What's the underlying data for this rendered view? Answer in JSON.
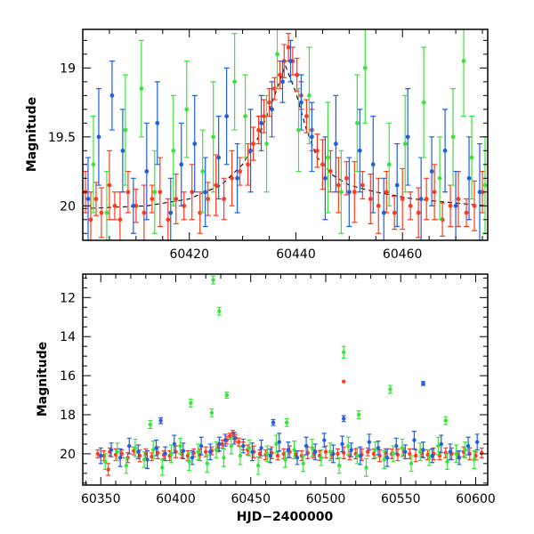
{
  "chart_data": [
    {
      "type": "scatter",
      "panel": "top",
      "title": "",
      "xlabel": "",
      "ylabel": "Magnitude",
      "xlim": [
        60400,
        60476
      ],
      "ylim": [
        20.25,
        18.72
      ],
      "y_inverted": true,
      "xticks": [
        60420,
        60440,
        60460
      ],
      "yticks": [
        19,
        19.5,
        20
      ],
      "ytick_labels": [
        "19",
        "19.5",
        "20"
      ],
      "error_bars": true,
      "grid": false,
      "legend": "none",
      "model_curve": {
        "style": "dashed",
        "color": "#000000",
        "x": [
          60400,
          60412,
          60420,
          60426,
          60430,
          60433,
          60436,
          60438,
          60440,
          60442,
          60444,
          60447,
          60450,
          60455,
          60462,
          60470,
          60476
        ],
        "y": [
          20.02,
          20.0,
          19.95,
          19.85,
          19.7,
          19.5,
          19.2,
          18.98,
          19.18,
          19.45,
          19.65,
          19.78,
          19.85,
          19.9,
          19.95,
          19.98,
          20.0
        ]
      },
      "series": [
        {
          "color": "#ff3b1f",
          "x": [
            60400.5,
            60401.5,
            60402.5,
            60403.5,
            60405,
            60406,
            60407,
            60408.5,
            60410,
            60411.5,
            60413,
            60414.5,
            60416,
            60417.5,
            60419,
            60420.5,
            60422,
            60423.5,
            60425,
            60426.5,
            60428,
            60429.5,
            60431,
            60432,
            60433,
            60434,
            60435,
            60436,
            60437,
            60437.8,
            60438.6,
            60439.4,
            60440.2,
            60441,
            60442,
            60443,
            60444,
            60445,
            60446.5,
            60448,
            60449.5,
            60451,
            60452.5,
            60454,
            60455.5,
            60457,
            60458.5,
            60460,
            60461.5,
            60463,
            60464.5,
            60466,
            60467.5,
            60469,
            60470.5,
            60472,
            60473.5,
            60475
          ],
          "y": [
            19.9,
            20.1,
            19.95,
            20.05,
            19.85,
            20.0,
            20.1,
            19.9,
            20.0,
            20.05,
            19.95,
            19.9,
            20.1,
            19.95,
            20.0,
            19.9,
            20.05,
            19.95,
            19.85,
            19.95,
            19.8,
            19.75,
            19.7,
            19.55,
            19.45,
            19.35,
            19.25,
            19.15,
            19.05,
            18.95,
            18.85,
            18.95,
            19.05,
            19.2,
            19.35,
            19.45,
            19.6,
            19.7,
            19.75,
            19.85,
            19.8,
            19.9,
            19.85,
            19.95,
            20.0,
            19.9,
            20.05,
            19.95,
            20.0,
            20.05,
            19.95,
            19.9,
            20.1,
            20.0,
            19.95,
            20.05,
            20.0,
            19.9
          ],
          "yerr": [
            0.15,
            0.2,
            0.12,
            0.18,
            0.25,
            0.1,
            0.2,
            0.15,
            0.12,
            0.2,
            0.1,
            0.25,
            0.15,
            0.18,
            0.1,
            0.2,
            0.15,
            0.12,
            0.22,
            0.15,
            0.2,
            0.1,
            0.15,
            0.12,
            0.1,
            0.12,
            0.1,
            0.08,
            0.1,
            0.12,
            0.1,
            0.1,
            0.12,
            0.1,
            0.12,
            0.15,
            0.12,
            0.18,
            0.15,
            0.2,
            0.12,
            0.22,
            0.1,
            0.18,
            0.2,
            0.15,
            0.12,
            0.22,
            0.1,
            0.18,
            0.15,
            0.2,
            0.12,
            0.15,
            0.2,
            0.1,
            0.18,
            0.15
          ]
        },
        {
          "color": "#1f5fe0",
          "x": [
            60401,
            60403,
            60405.5,
            60407.5,
            60409.5,
            60412,
            60414,
            60416.5,
            60418.5,
            60421,
            60423,
            60425.5,
            60427,
            60429,
            60431.5,
            60433.5,
            60435.5,
            60437.5,
            60439,
            60441,
            60443,
            60445.5,
            60447.5,
            60450,
            60452,
            60454.5,
            60456.5,
            60459,
            60461,
            60463.5,
            60465.5,
            60468,
            60470,
            60472.5,
            60474.5
          ],
          "y": [
            19.95,
            19.5,
            19.2,
            19.6,
            20.0,
            19.75,
            19.4,
            20.05,
            19.7,
            19.55,
            19.9,
            19.65,
            19.35,
            19.8,
            19.6,
            19.4,
            19.3,
            19.1,
            18.95,
            19.25,
            19.5,
            19.8,
            19.55,
            19.9,
            19.6,
            19.7,
            20.05,
            19.85,
            19.5,
            19.95,
            19.75,
            19.6,
            20.0,
            19.8,
            19.9
          ],
          "yerr": [
            0.3,
            0.35,
            0.25,
            0.3,
            0.2,
            0.35,
            0.3,
            0.25,
            0.3,
            0.35,
            0.25,
            0.3,
            0.35,
            0.25,
            0.3,
            0.2,
            0.2,
            0.15,
            0.15,
            0.2,
            0.25,
            0.3,
            0.35,
            0.25,
            0.3,
            0.35,
            0.25,
            0.3,
            0.35,
            0.3,
            0.25,
            0.3,
            0.25,
            0.3,
            0.35
          ]
        },
        {
          "color": "#3ce33c",
          "x": [
            60402,
            60404.5,
            60408,
            60411,
            60413.5,
            60417,
            60419.5,
            60422.5,
            60424.5,
            60428.5,
            60430.5,
            60434.5,
            60436.5,
            60440.5,
            60442.5,
            60446,
            60448.5,
            60451.5,
            60453,
            60457.5,
            60460.5,
            60464,
            60467,
            60469.5,
            60471.5,
            60473,
            60475.5
          ],
          "y": [
            19.7,
            20.05,
            19.45,
            19.15,
            19.9,
            19.6,
            19.3,
            19.75,
            19.5,
            19.1,
            19.35,
            19.55,
            18.9,
            19.45,
            19.2,
            19.65,
            19.9,
            19.4,
            19.0,
            19.7,
            19.55,
            19.25,
            19.8,
            19.5,
            18.95,
            19.65,
            19.85
          ],
          "yerr": [
            0.35,
            0.3,
            0.4,
            0.35,
            0.3,
            0.4,
            0.35,
            0.3,
            0.4,
            0.35,
            0.3,
            0.35,
            0.25,
            0.3,
            0.35,
            0.4,
            0.3,
            0.35,
            0.4,
            0.3,
            0.35,
            0.4,
            0.3,
            0.35,
            0.4,
            0.3,
            0.35
          ]
        }
      ]
    },
    {
      "type": "scatter",
      "panel": "bottom",
      "title": "",
      "xlabel": "HJD−2400000",
      "ylabel": "Magnitude",
      "xlim": [
        60338,
        60608
      ],
      "ylim": [
        21.6,
        10.8
      ],
      "y_inverted": true,
      "xticks": [
        60350,
        60400,
        60450,
        60500,
        60550,
        60600
      ],
      "yticks": [
        12,
        14,
        16,
        18,
        20
      ],
      "ytick_labels": [
        "12",
        "14",
        "16",
        "18",
        "20"
      ],
      "error_bars": true,
      "grid": false,
      "legend": "none",
      "series": [
        {
          "color": "#ff3b1f",
          "x": [
            60348,
            60352,
            60356,
            60360,
            60364,
            60368,
            60372,
            60376,
            60380,
            60384,
            60388,
            60392,
            60396,
            60400,
            60404,
            60408,
            60412,
            60416,
            60420,
            60424,
            60428,
            60431,
            60434,
            60436,
            60438,
            60440,
            60442,
            60445,
            60448,
            60452,
            60456,
            60460,
            60464,
            60468,
            60472,
            60476,
            60480,
            60484,
            60488,
            60492,
            60496,
            60500,
            60504,
            60508,
            60512,
            60516,
            60520,
            60524,
            60528,
            60532,
            60536,
            60540,
            60544,
            60548,
            60552,
            60556,
            60560,
            60564,
            60568,
            60572,
            60576,
            60580,
            60584,
            60588,
            60592,
            60596,
            60600,
            60604,
            60355,
            60512
          ],
          "y": [
            20.0,
            20.1,
            19.9,
            20.05,
            20.0,
            20.2,
            19.85,
            20.1,
            20.0,
            20.15,
            19.95,
            20.05,
            20.1,
            19.9,
            20.0,
            20.1,
            19.95,
            20.05,
            19.9,
            19.85,
            19.7,
            19.5,
            19.3,
            19.1,
            18.95,
            19.2,
            19.4,
            19.6,
            19.8,
            19.9,
            20.0,
            20.05,
            19.95,
            20.1,
            20.0,
            19.9,
            20.05,
            20.1,
            19.95,
            20.0,
            20.1,
            19.9,
            20.05,
            20.0,
            19.95,
            20.1,
            20.0,
            20.05,
            19.9,
            20.0,
            20.1,
            19.95,
            20.0,
            20.05,
            19.9,
            20.0,
            20.1,
            19.95,
            20.05,
            20.0,
            20.1,
            19.95,
            20.0,
            20.05,
            19.9,
            20.0,
            20.1,
            19.95,
            20.8,
            16.3
          ],
          "yerr": [
            0.2,
            0.25,
            0.2,
            0.3,
            0.2,
            0.25,
            0.2,
            0.3,
            0.25,
            0.2,
            0.3,
            0.2,
            0.25,
            0.3,
            0.2,
            0.25,
            0.2,
            0.3,
            0.25,
            0.2,
            0.2,
            0.2,
            0.2,
            0.15,
            0.15,
            0.2,
            0.2,
            0.2,
            0.25,
            0.3,
            0.2,
            0.25,
            0.3,
            0.2,
            0.25,
            0.3,
            0.2,
            0.25,
            0.3,
            0.2,
            0.25,
            0.3,
            0.2,
            0.25,
            0.3,
            0.2,
            0.25,
            0.3,
            0.2,
            0.25,
            0.3,
            0.2,
            0.25,
            0.3,
            0.2,
            0.25,
            0.3,
            0.2,
            0.25,
            0.3,
            0.2,
            0.25,
            0.3,
            0.2,
            0.25,
            0.3,
            0.2,
            0.25,
            0.3,
            0.0
          ]
        },
        {
          "color": "#1f5fe0",
          "x": [
            60350,
            60357,
            60363,
            60369,
            60375,
            60381,
            60387,
            60393,
            60399,
            60405,
            60411,
            60417,
            60423,
            60429,
            60433,
            60439,
            60445,
            60451,
            60457,
            60463,
            60469,
            60475,
            60481,
            60487,
            60493,
            60499,
            60505,
            60511,
            60517,
            60523,
            60529,
            60535,
            60541,
            60547,
            60553,
            60559,
            60565,
            60571,
            60577,
            60583,
            60589,
            60595,
            60601,
            60390,
            60465,
            60512,
            60565
          ],
          "y": [
            20.1,
            19.8,
            20.2,
            19.6,
            19.9,
            20.3,
            19.7,
            20.0,
            19.5,
            19.85,
            20.2,
            19.6,
            19.9,
            19.5,
            19.3,
            19.2,
            19.6,
            19.9,
            19.7,
            20.1,
            19.4,
            19.8,
            20.2,
            19.6,
            19.9,
            19.3,
            20.0,
            19.5,
            19.8,
            20.1,
            19.4,
            19.7,
            20.2,
            19.6,
            19.9,
            19.3,
            19.8,
            20.1,
            19.5,
            19.9,
            20.2,
            19.6,
            19.4,
            18.3,
            18.4,
            18.2,
            16.4
          ],
          "yerr": [
            0.4,
            0.35,
            0.45,
            0.4,
            0.35,
            0.45,
            0.4,
            0.35,
            0.45,
            0.4,
            0.35,
            0.45,
            0.4,
            0.35,
            0.3,
            0.3,
            0.35,
            0.45,
            0.4,
            0.35,
            0.45,
            0.4,
            0.35,
            0.45,
            0.4,
            0.35,
            0.45,
            0.4,
            0.35,
            0.45,
            0.4,
            0.35,
            0.45,
            0.4,
            0.35,
            0.45,
            0.4,
            0.35,
            0.45,
            0.4,
            0.35,
            0.45,
            0.4,
            0.15,
            0.15,
            0.15,
            0.1
          ]
        },
        {
          "color": "#3ce33c",
          "x": [
            60353,
            60361,
            60367,
            60373,
            60379,
            60385,
            60391,
            60397,
            60403,
            60409,
            60415,
            60421,
            60427,
            60432,
            60437,
            60443,
            60449,
            60455,
            60461,
            60467,
            60473,
            60479,
            60485,
            60491,
            60497,
            60503,
            60509,
            60515,
            60521,
            60527,
            60533,
            60539,
            60545,
            60551,
            60557,
            60563,
            60569,
            60575,
            60581,
            60587,
            60593,
            60599,
            60425,
            60429,
            60512,
            60543,
            60522,
            60580,
            60434,
            60410,
            60474,
            60383,
            60424
          ],
          "y": [
            20.4,
            19.9,
            20.6,
            19.7,
            20.3,
            19.8,
            20.7,
            20.0,
            19.6,
            20.4,
            19.9,
            20.5,
            19.8,
            20.2,
            19.6,
            20.1,
            19.7,
            20.6,
            20.0,
            19.5,
            20.3,
            19.8,
            20.5,
            19.7,
            20.2,
            19.9,
            20.6,
            19.6,
            20.1,
            20.7,
            19.8,
            20.3,
            20.0,
            19.7,
            20.5,
            19.9,
            20.2,
            19.6,
            20.4,
            20.0,
            19.8,
            20.3,
            11.1,
            12.7,
            14.8,
            16.7,
            18.0,
            18.3,
            17.0,
            17.4,
            18.4,
            18.5,
            17.9
          ],
          "yerr": [
            0.4,
            0.45,
            0.4,
            0.45,
            0.4,
            0.45,
            0.4,
            0.45,
            0.4,
            0.45,
            0.4,
            0.45,
            0.4,
            0.45,
            0.4,
            0.45,
            0.4,
            0.45,
            0.4,
            0.45,
            0.4,
            0.45,
            0.4,
            0.45,
            0.4,
            0.45,
            0.4,
            0.45,
            0.4,
            0.45,
            0.4,
            0.45,
            0.4,
            0.45,
            0.4,
            0.45,
            0.4,
            0.45,
            0.4,
            0.45,
            0.4,
            0.45,
            0.2,
            0.2,
            0.3,
            0.2,
            0.2,
            0.2,
            0.15,
            0.2,
            0.2,
            0.2,
            0.2
          ]
        }
      ]
    }
  ]
}
